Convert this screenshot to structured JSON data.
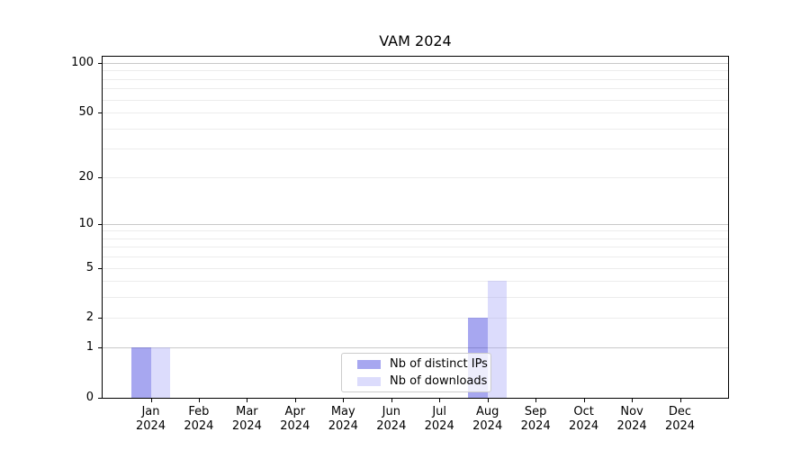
{
  "chart_data": {
    "type": "bar",
    "title": "VAM 2024",
    "xlabel": "",
    "ylabel": "",
    "categories": [
      "Jan",
      "Feb",
      "Mar",
      "Apr",
      "May",
      "Jun",
      "Jul",
      "Aug",
      "Sep",
      "Oct",
      "Nov",
      "Dec"
    ],
    "category_year": "2024",
    "series": [
      {
        "name": "Nb of distinct IPs",
        "values": [
          1,
          0,
          0,
          0,
          0,
          0,
          0,
          2,
          0,
          0,
          0,
          0
        ],
        "color": "rgba(59,59,222,0.45)"
      },
      {
        "name": "Nb of downloads",
        "values": [
          1,
          0,
          0,
          0,
          0,
          0,
          0,
          4,
          0,
          0,
          0,
          0
        ],
        "color": "rgba(162,162,246,0.38)"
      }
    ],
    "y_axis": {
      "scale": "symlog-log1p",
      "ylim": [
        0,
        111
      ],
      "tick_labels": [
        "0",
        "1",
        "2",
        "5",
        "10",
        "20",
        "50",
        "100"
      ],
      "tick_values": [
        0,
        1,
        2,
        5,
        10,
        20,
        50,
        100
      ],
      "major_grid_values": [
        1,
        10,
        100
      ],
      "minor_grid_values": [
        2,
        3,
        4,
        5,
        6,
        7,
        8,
        9,
        20,
        30,
        40,
        50,
        60,
        70,
        80,
        90
      ]
    },
    "legend": {
      "position": "lower center",
      "entries": [
        "Nb of distinct IPs",
        "Nb of downloads"
      ]
    },
    "grid": true,
    "colors": {
      "grid_major": "#c9c9c9",
      "grid_minor": "#ececec",
      "spine": "#000000",
      "text": "#000000",
      "legend_border": "#cccccc",
      "legend_background": "rgba(255,255,255,0.8)"
    }
  }
}
